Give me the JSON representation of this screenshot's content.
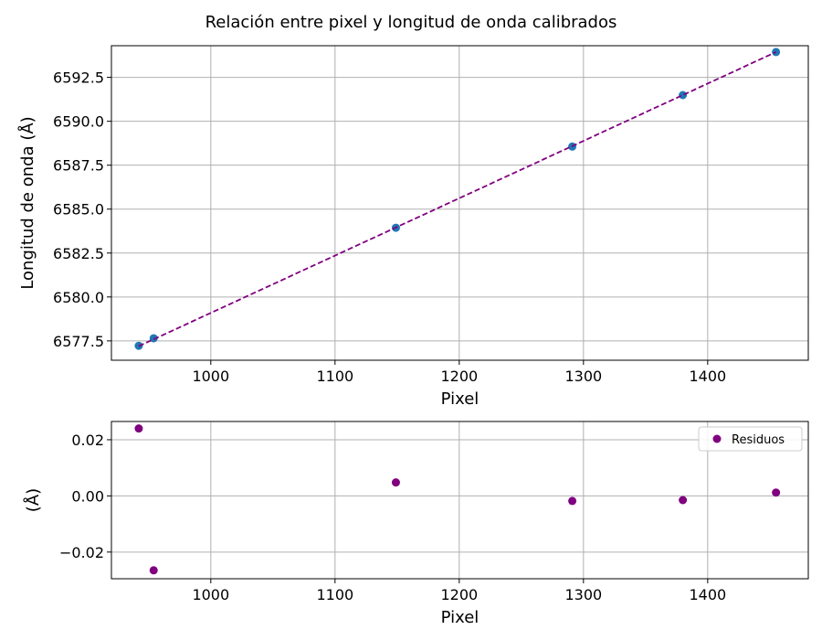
{
  "title": "Relación entre pixel y longitud de onda calibrados",
  "colors": {
    "points": "#1f77b4",
    "fit_line": "#800080",
    "residuals": "#800080",
    "grid": "#b0b0b0"
  },
  "chart_data": [
    {
      "type": "scatter",
      "xlabel": "Pixel",
      "ylabel": "Longitud de onda (Å)",
      "xlim": [
        920,
        1481
      ],
      "ylim": [
        6576.4,
        6594.3
      ],
      "xticks": [
        1000,
        1100,
        1200,
        1300,
        1400
      ],
      "xtick_labels": [
        "1000",
        "1100",
        "1200",
        "1300",
        "1400"
      ],
      "yticks": [
        6577.5,
        6580.0,
        6582.5,
        6585.0,
        6587.5,
        6590.0,
        6592.5
      ],
      "ytick_labels": [
        "6577.5",
        "6580.0",
        "6582.5",
        "6585.0",
        "6587.5",
        "6590.0",
        "6592.5"
      ],
      "grid": true,
      "series": [
        {
          "kind": "scatter",
          "color": "#1f77b4",
          "x": [
            942,
            954,
            1149,
            1291,
            1380,
            1455
          ],
          "y": [
            6577.22,
            6577.65,
            6583.94,
            6588.56,
            6591.49,
            6593.94
          ]
        },
        {
          "kind": "line",
          "style": "dashed",
          "color": "#800080",
          "x": [
            942,
            1455
          ],
          "y": [
            6577.2,
            6593.94
          ]
        }
      ]
    },
    {
      "type": "scatter",
      "xlabel": "Pixel",
      "ylabel": "(Å)",
      "xlim": [
        920,
        1481
      ],
      "ylim": [
        -0.0295,
        0.0265
      ],
      "xticks": [
        1000,
        1100,
        1200,
        1300,
        1400
      ],
      "xtick_labels": [
        "1000",
        "1100",
        "1200",
        "1300",
        "1400"
      ],
      "yticks": [
        -0.02,
        0.0,
        0.02
      ],
      "ytick_labels": [
        "−0.02",
        "0.00",
        "0.02"
      ],
      "grid": true,
      "legend": "top-right",
      "series": [
        {
          "name": "Residuos",
          "kind": "scatter",
          "color": "#800080",
          "x": [
            942,
            954,
            1149,
            1291,
            1380,
            1455
          ],
          "y": [
            0.024,
            -0.0265,
            0.0048,
            -0.0018,
            -0.0015,
            0.0012
          ]
        }
      ]
    }
  ]
}
